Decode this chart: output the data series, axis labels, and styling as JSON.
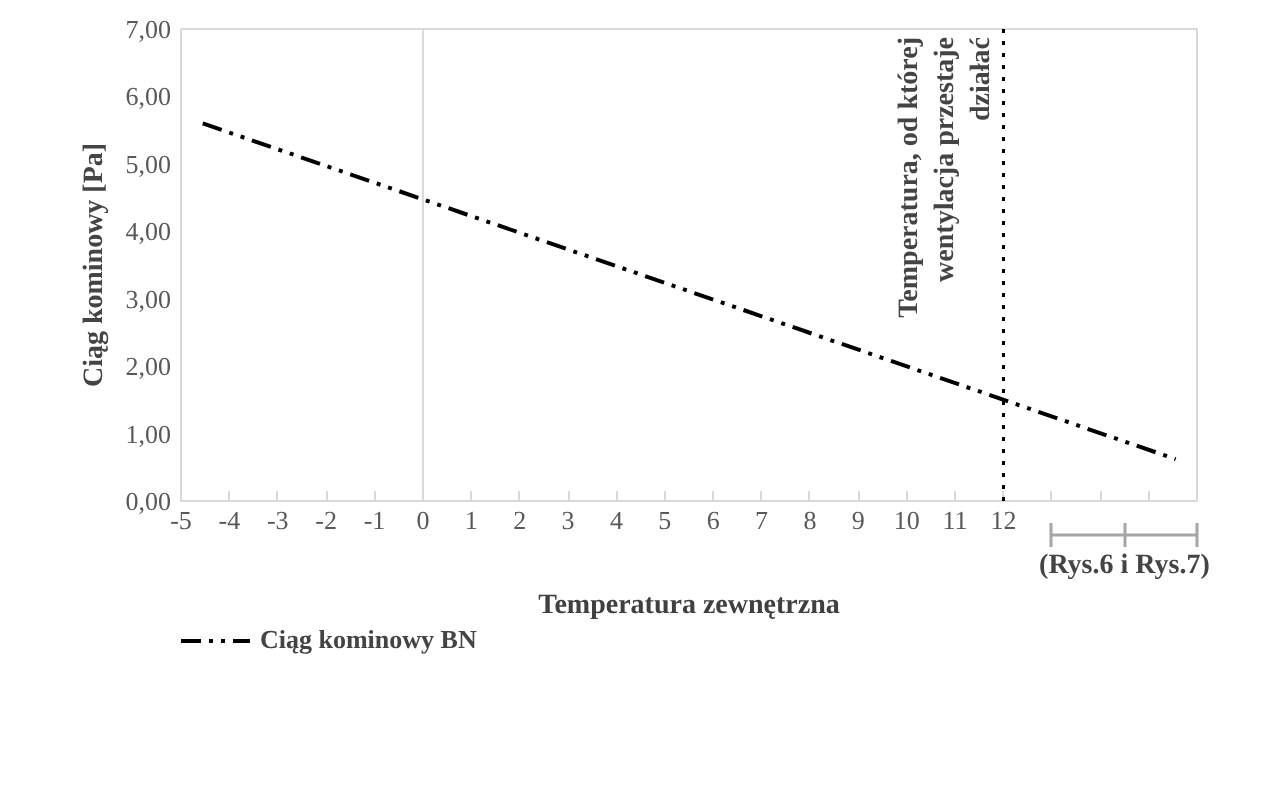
{
  "chart_data": {
    "type": "line",
    "xlabel": "Temperatura zewnętrzna",
    "ylabel": "Ciąg kominowy [Pa]",
    "x": [
      -4.55,
      15.56
    ],
    "series": [
      {
        "name": "Ciąg kominowy BN",
        "color": "#000000",
        "values": [
          5.6,
          0.62
        ],
        "line_style": "dashdot"
      }
    ],
    "xlim": [
      -5,
      16
    ],
    "ylim": [
      0,
      7
    ],
    "xticks": [
      -5,
      -4,
      -3,
      -2,
      -1,
      0,
      1,
      2,
      3,
      4,
      5,
      6,
      7,
      8,
      9,
      10,
      11,
      12,
      {
        "value": 13,
        "label": null
      },
      {
        "value": 14,
        "label": null
      },
      {
        "value": 15,
        "label": null
      },
      {
        "value": 16,
        "label": null
      }
    ],
    "yticks": [
      {
        "value": 0,
        "label": "0,00"
      },
      {
        "value": 1,
        "label": "1,00"
      },
      {
        "value": 2,
        "label": "2,00"
      },
      {
        "value": 3,
        "label": "3,00"
      },
      {
        "value": 4,
        "label": "4,00"
      },
      {
        "value": 5,
        "label": "5,00"
      },
      {
        "value": 6,
        "label": "6,00"
      },
      {
        "value": 7,
        "label": "7,00"
      }
    ],
    "ref_lines": [
      {
        "axis": "x",
        "value": 0,
        "label": null,
        "color": "#d9d9d9",
        "line_style": "solid"
      },
      {
        "axis": "x",
        "value": 12,
        "label": "Temperatura, od której\nwentylacja przestaje\ndziałać",
        "color": "#000000",
        "line_style": "dotted"
      }
    ],
    "annotations": [
      "(Rys.6 i Rys.7)"
    ],
    "grid": false,
    "legend": "bottom left",
    "marker": "none"
  }
}
